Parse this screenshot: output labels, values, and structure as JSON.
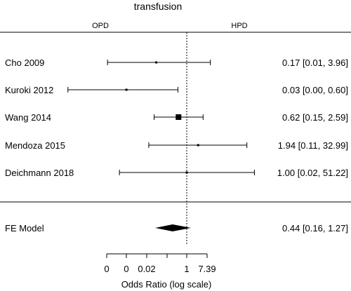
{
  "chart_data": {
    "type": "forest",
    "title": "transfusion",
    "left_group_label": "OPD",
    "right_group_label": "HPD",
    "xlabel": "Odds Ratio (log scale)",
    "x_scale": "log",
    "reference_line": 1,
    "x_tick_labels": [
      "0",
      "0",
      "0.02",
      "1",
      "7.39"
    ],
    "studies": [
      {
        "label": "Cho 2009",
        "or": 0.17,
        "ci_low": 0.01,
        "ci_high": 3.96,
        "text": "0.17 [0.01,  3.96]",
        "weight": "small"
      },
      {
        "label": "Kuroki 2012",
        "or": 0.03,
        "ci_low": 0.0,
        "ci_high": 0.6,
        "text": "0.03 [0.00,  0.60]",
        "weight": "small"
      },
      {
        "label": "Wang 2014",
        "or": 0.62,
        "ci_low": 0.15,
        "ci_high": 2.59,
        "text": "0.62 [0.15,  2.59]",
        "weight": "large"
      },
      {
        "label": "Mendoza 2015",
        "or": 1.94,
        "ci_low": 0.11,
        "ci_high": 32.99,
        "text": "1.94 [0.11, 32.99]",
        "weight": "small"
      },
      {
        "label": "Deichmann 2018",
        "or": 1.0,
        "ci_low": 0.02,
        "ci_high": 51.22,
        "text": "1.00 [0.02, 51.22]",
        "weight": "small"
      }
    ],
    "summary": {
      "label": "FE Model",
      "or": 0.44,
      "ci_low": 0.16,
      "ci_high": 1.27,
      "text": "0.44 [0.16,  1.27]"
    }
  }
}
